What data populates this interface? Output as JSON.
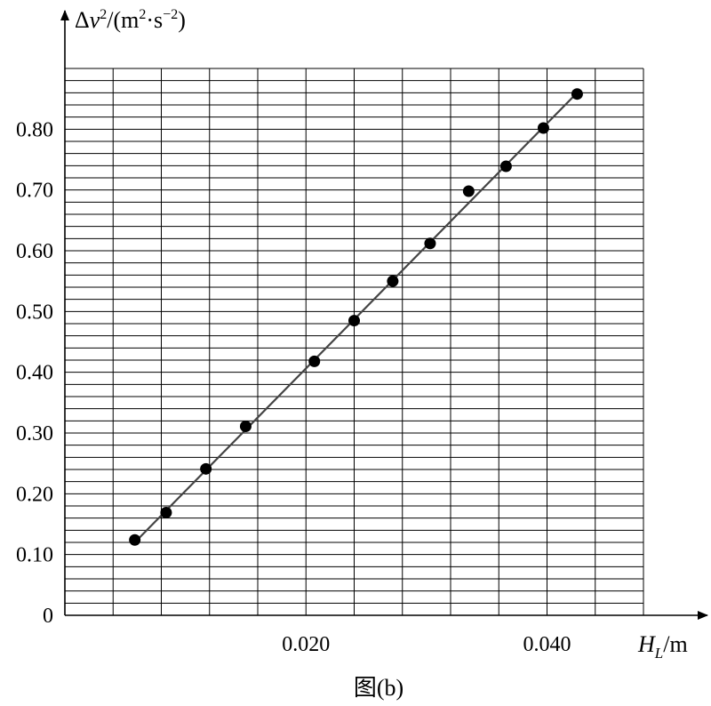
{
  "chart_data": {
    "type": "scatter",
    "title": "",
    "caption": "图(b)",
    "xlabel": {
      "symbol": "H",
      "subscript": "L",
      "unit": "/m"
    },
    "ylabel": {
      "prefix": "Δ",
      "var": "v",
      "exp": "2",
      "unit_open": "/(m",
      "unit_exp1": "2",
      "unit_mid": "·s",
      "unit_exp2": "−2",
      "unit_close": ")"
    },
    "xlim": [
      0,
      0.048
    ],
    "ylim": [
      0,
      0.9
    ],
    "x_ticks": [
      {
        "value": 0.02,
        "label": "0.020"
      },
      {
        "value": 0.04,
        "label": "0.040"
      }
    ],
    "y_ticks": [
      {
        "value": 0,
        "label": "0"
      },
      {
        "value": 0.1,
        "label": "0.10"
      },
      {
        "value": 0.2,
        "label": "0.20"
      },
      {
        "value": 0.3,
        "label": "0.30"
      },
      {
        "value": 0.4,
        "label": "0.40"
      },
      {
        "value": 0.5,
        "label": "0.50"
      },
      {
        "value": 0.6,
        "label": "0.60"
      },
      {
        "value": 0.7,
        "label": "0.70"
      },
      {
        "value": 0.8,
        "label": "0.80"
      }
    ],
    "grid": {
      "x_major_step": 0.004,
      "y_minor_step": 0.02
    },
    "points": [
      {
        "x": 0.0058,
        "y": 0.124
      },
      {
        "x": 0.0084,
        "y": 0.169
      },
      {
        "x": 0.0117,
        "y": 0.241
      },
      {
        "x": 0.015,
        "y": 0.311
      },
      {
        "x": 0.0207,
        "y": 0.418
      },
      {
        "x": 0.024,
        "y": 0.485
      },
      {
        "x": 0.0272,
        "y": 0.55
      },
      {
        "x": 0.0303,
        "y": 0.612
      },
      {
        "x": 0.0335,
        "y": 0.698
      },
      {
        "x": 0.0366,
        "y": 0.739
      },
      {
        "x": 0.0397,
        "y": 0.802
      },
      {
        "x": 0.0425,
        "y": 0.858
      }
    ],
    "fit_line": {
      "x1": 0.0058,
      "y1": 0.12,
      "x2": 0.0425,
      "y2": 0.86
    }
  }
}
